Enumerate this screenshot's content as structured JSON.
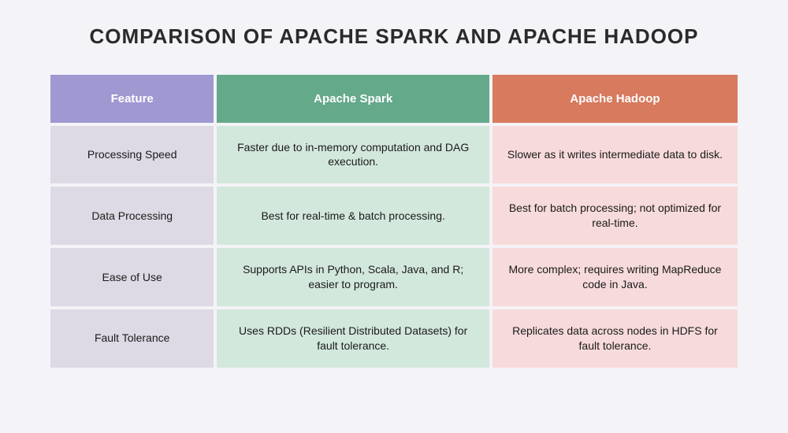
{
  "title": "COMPARISON OF APACHE SPARK AND APACHE HADOOP",
  "table": {
    "type": "table",
    "background_color": "#f4f3f7",
    "header": {
      "feature": {
        "label": "Feature",
        "bg": "#a098d1",
        "fg": "#ffffff"
      },
      "spark": {
        "label": "Apache Spark",
        "bg": "#65a98b",
        "fg": "#ffffff"
      },
      "hadoop": {
        "label": "Apache Hadoop",
        "bg": "#d77a5d",
        "fg": "#ffffff"
      }
    },
    "body_colors": {
      "feature_bg": "#dedae5",
      "spark_bg": "#d3e8dc",
      "hadoop_bg": "#f7dadb",
      "text": "#1a1a1a"
    },
    "rows": [
      {
        "feature": "Processing Speed",
        "spark": "Faster due to in-memory computation and DAG execution.",
        "hadoop": "Slower as it writes intermediate data to disk."
      },
      {
        "feature": "Data Processing",
        "spark": "Best for real-time & batch processing.",
        "hadoop": "Best for batch processing; not optimized for real-time."
      },
      {
        "feature": "Ease of Use",
        "spark": "Supports APIs in Python, Scala, Java, and R; easier to program.",
        "hadoop": "More complex; requires writing MapReduce code in Java."
      },
      {
        "feature": "Fault Tolerance",
        "spark": "Uses RDDs (Resilient Distributed Datasets) for fault tolerance.",
        "hadoop": "Replicates data across nodes in HDFS for fault tolerance."
      }
    ],
    "column_widths_pct": [
      24,
      40,
      36
    ],
    "title_fontsize": 26,
    "header_fontsize": 15,
    "body_fontsize": 14
  }
}
